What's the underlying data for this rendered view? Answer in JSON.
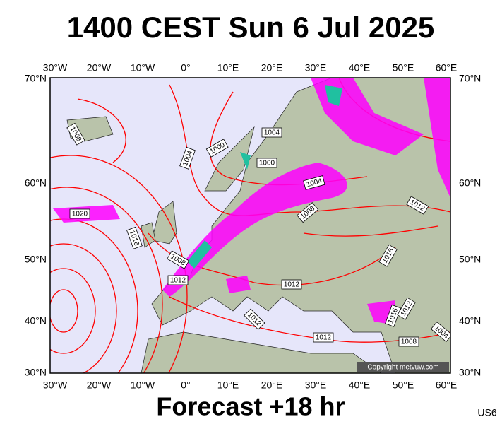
{
  "header": {
    "title": "1400 CEST Sun 6 Jul 2025"
  },
  "map": {
    "lon_labels": [
      "30°W",
      "20°W",
      "10°W",
      "0°",
      "10°E",
      "20°E",
      "30°E",
      "40°E",
      "50°E",
      "60°E"
    ],
    "lat_labels": [
      "70°N",
      "60°N",
      "50°N",
      "40°N",
      "30°N"
    ],
    "isobar_labels": [
      "1008",
      "1004",
      "1000",
      "1004",
      "1000",
      "1004",
      "1008",
      "1012",
      "1020",
      "1016",
      "1016",
      "1008",
      "1012",
      "1012",
      "1012",
      "1016",
      "1012",
      "1012",
      "1008",
      "1004"
    ],
    "copyright": "Copyright metvuw.com"
  },
  "footer": {
    "forecast": "Forecast +18 hr",
    "code": "US6"
  }
}
